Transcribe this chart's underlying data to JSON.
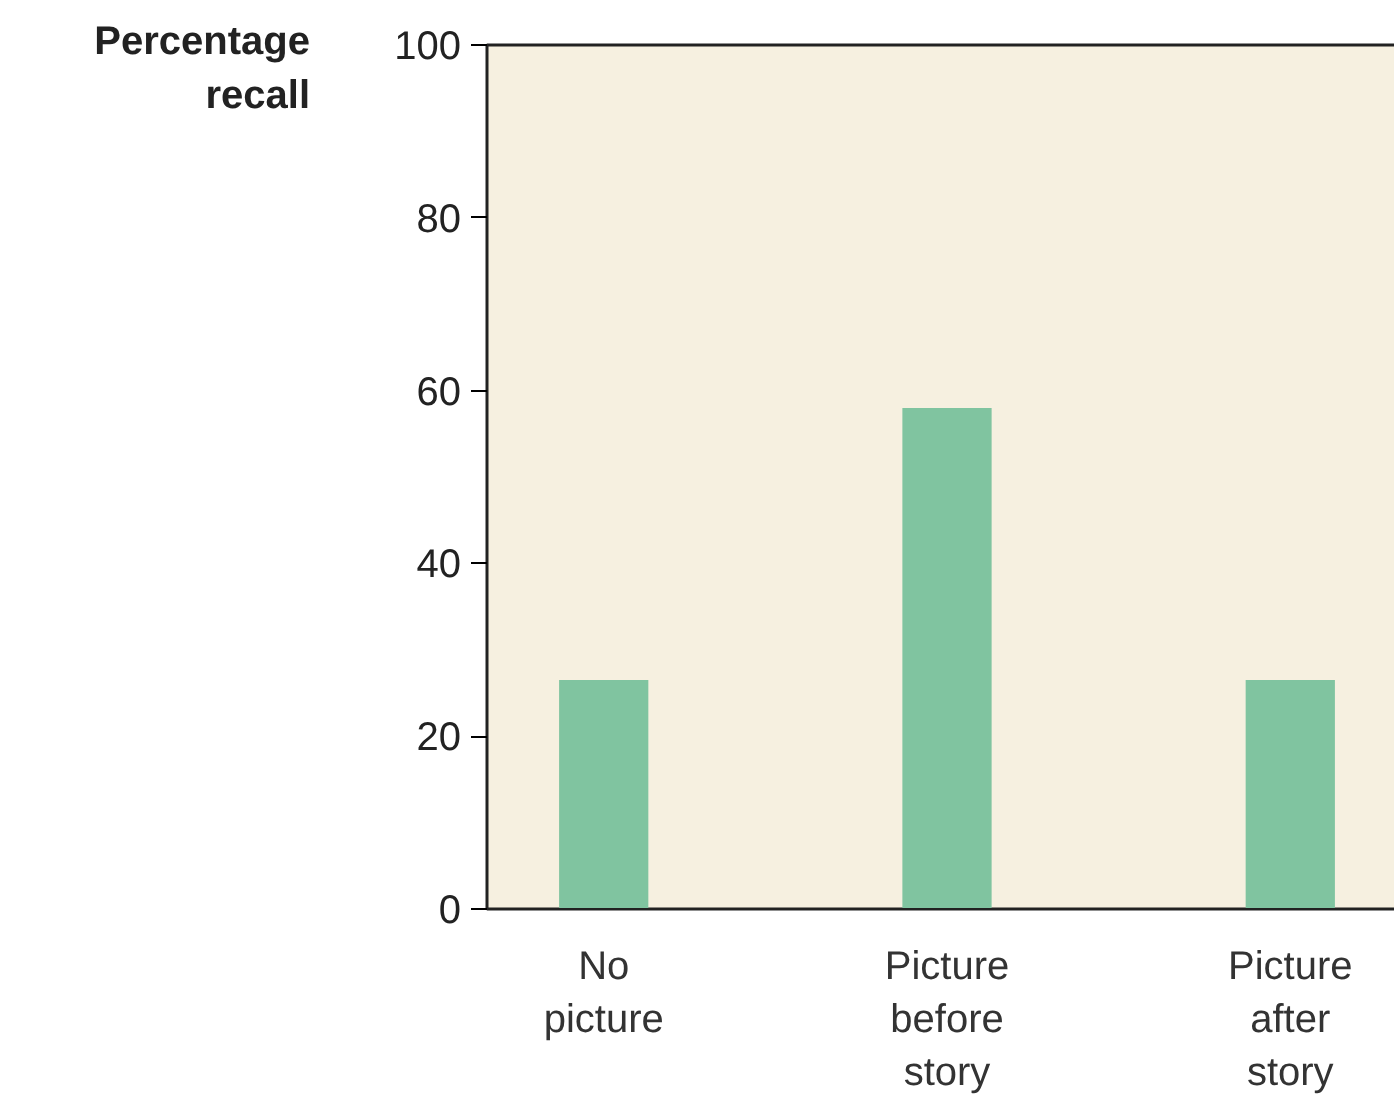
{
  "chart_data": {
    "type": "bar",
    "ylabel": "Percentage recall",
    "categories": [
      "No picture",
      "Picture before story",
      "Picture after story"
    ],
    "values": [
      26.5,
      58,
      26.5
    ],
    "color": "#80c4a0",
    "ylim": [
      0,
      100
    ],
    "yticks": [
      0,
      20,
      40,
      60,
      80,
      100
    ],
    "grid": false
  }
}
